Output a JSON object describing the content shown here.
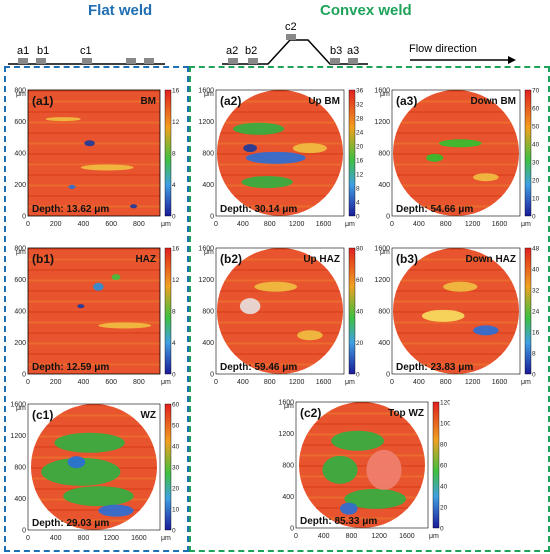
{
  "titles": {
    "flat": "Flat weld",
    "convex": "Convex weld"
  },
  "diagram": {
    "flat_labels": [
      "a1",
      "b1",
      "c1"
    ],
    "convex_labels": [
      "a2",
      "b2",
      "c2",
      "b3",
      "a3"
    ],
    "flow": "Flow direction"
  },
  "panels": [
    {
      "id": "a1",
      "tag": "(a1)",
      "region": "BM",
      "depth": "Depth: 13.62 μm",
      "unit": "μm",
      "xticks": [
        "0",
        "200",
        "400",
        "600",
        "800"
      ],
      "yticks": [
        "800",
        "600",
        "400",
        "200",
        "0"
      ],
      "cbar": [
        "16",
        "12",
        "8",
        "4",
        "0"
      ],
      "shape": "rect"
    },
    {
      "id": "b1",
      "tag": "(b1)",
      "region": "HAZ",
      "depth": "Depth: 12.59 μm",
      "unit": "μm",
      "xticks": [
        "0",
        "200",
        "400",
        "600",
        "800"
      ],
      "yticks": [
        "800",
        "600",
        "400",
        "200",
        "0"
      ],
      "cbar": [
        "16",
        "12",
        "8",
        "4",
        "0"
      ],
      "shape": "rect"
    },
    {
      "id": "c1",
      "tag": "(c1)",
      "region": "WZ",
      "depth": "Depth: 29.03 μm",
      "unit": "μm",
      "xticks": [
        "0",
        "400",
        "800",
        "1200",
        "1600"
      ],
      "yticks": [
        "1600",
        "1200",
        "800",
        "400",
        "0"
      ],
      "cbar": [
        "60",
        "50",
        "40",
        "30",
        "20",
        "10",
        "0"
      ],
      "shape": "circle"
    },
    {
      "id": "a2",
      "tag": "(a2)",
      "region": "Up BM",
      "depth": "Depth: 30.14 μm",
      "unit": "μm",
      "xticks": [
        "0",
        "400",
        "800",
        "1200",
        "1600"
      ],
      "yticks": [
        "1600",
        "1200",
        "800",
        "400",
        "0"
      ],
      "cbar": [
        "36",
        "32",
        "28",
        "24",
        "20",
        "16",
        "12",
        "8",
        "4",
        "0"
      ],
      "shape": "circle"
    },
    {
      "id": "a3",
      "tag": "(a3)",
      "region": "Down BM",
      "depth": "Depth: 54.66 μm",
      "unit": "μm",
      "xticks": [
        "0",
        "400",
        "800",
        "1200",
        "1600"
      ],
      "yticks": [
        "1600",
        "1200",
        "800",
        "400",
        "0"
      ],
      "cbar": [
        "70",
        "60",
        "50",
        "40",
        "30",
        "20",
        "10",
        "0"
      ],
      "shape": "circle"
    },
    {
      "id": "b2",
      "tag": "(b2)",
      "region": "Up HAZ",
      "depth": "Depth: 59.46 μm",
      "unit": "μm",
      "xticks": [
        "0",
        "400",
        "800",
        "1200",
        "1600"
      ],
      "yticks": [
        "1600",
        "1200",
        "800",
        "400",
        "0"
      ],
      "cbar": [
        "80",
        "60",
        "40",
        "20",
        "0"
      ],
      "shape": "circle"
    },
    {
      "id": "b3",
      "tag": "(b3)",
      "region": "Down HAZ",
      "depth": "Depth: 23.83 μm",
      "unit": "μm",
      "xticks": [
        "0",
        "400",
        "800",
        "1200",
        "1600"
      ],
      "yticks": [
        "1600",
        "1200",
        "800",
        "400",
        "0"
      ],
      "cbar": [
        "48",
        "40",
        "32",
        "24",
        "16",
        "8",
        "0"
      ],
      "shape": "circle"
    },
    {
      "id": "c2",
      "tag": "(c2)",
      "region": "Top WZ",
      "depth": "Depth: 85.33 μm",
      "unit": "μm",
      "xticks": [
        "0",
        "400",
        "800",
        "1200",
        "1600"
      ],
      "yticks": [
        "1600",
        "1200",
        "800",
        "400",
        "0"
      ],
      "cbar": [
        "120",
        "100",
        "80",
        "60",
        "40",
        "20",
        "0"
      ],
      "shape": "circle"
    }
  ],
  "colors": {
    "flat": "#1f6fb4",
    "convex": "#1fa35a",
    "arrow": "#000000"
  }
}
